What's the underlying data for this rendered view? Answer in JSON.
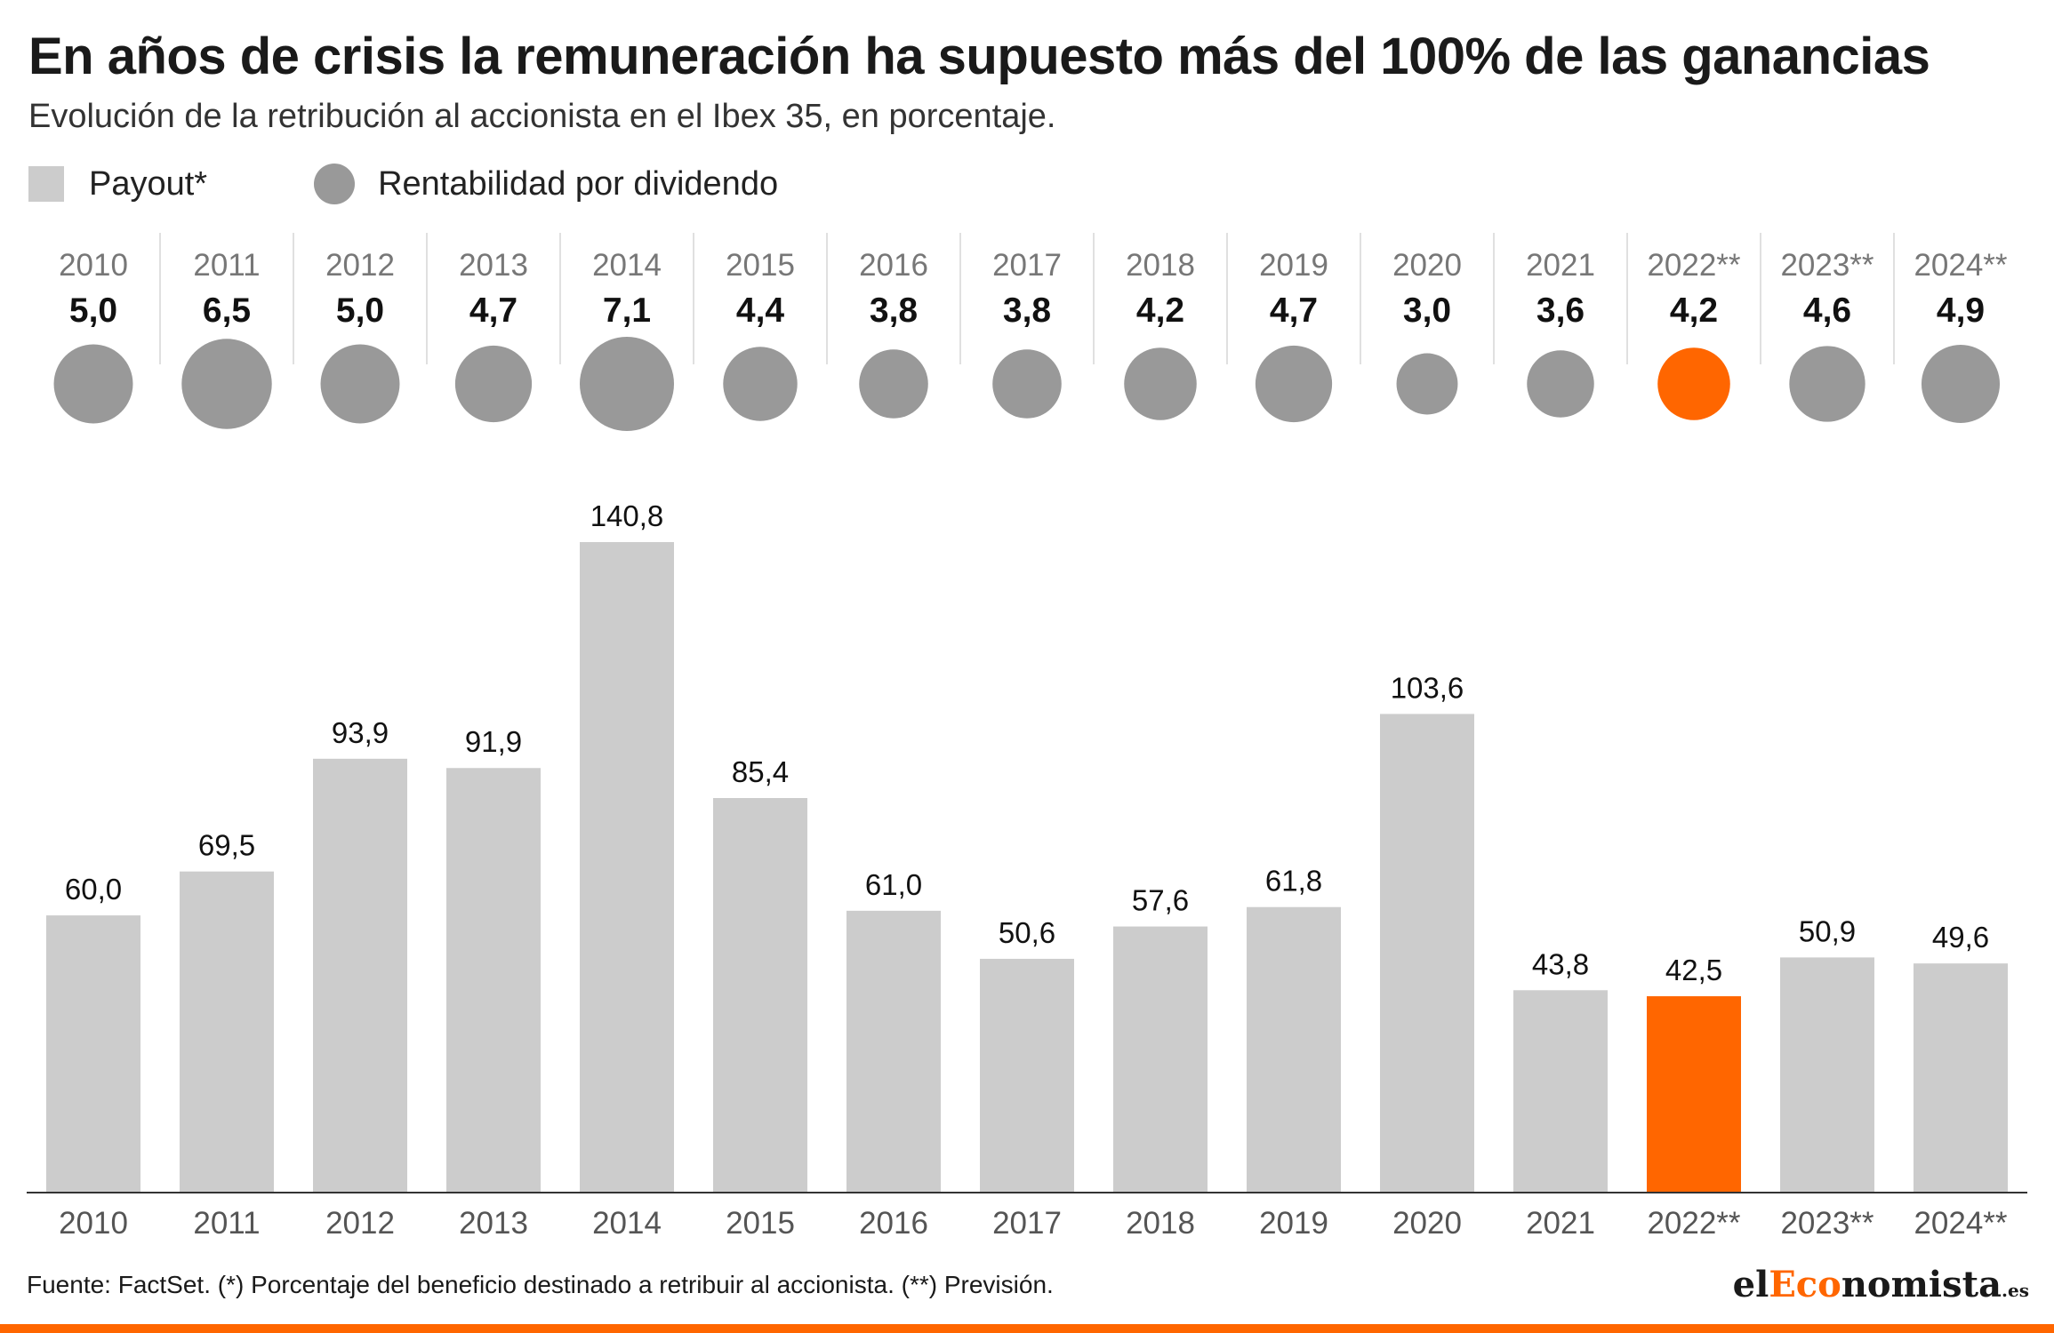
{
  "title": "En años de crisis la remuneración ha supuesto más del 100% de las ganancias",
  "subtitle": "Evolución de la retribución al accionista en el Ibex 35, en porcentaje.",
  "legend": {
    "payout": "Payout*",
    "yield": "Rentabilidad por dividendo"
  },
  "footer": "Fuente: FactSet. (*) Porcentaje del beneficio destinado a retribuir al accionista. (**) Previsión.",
  "logo": {
    "pre": "el",
    "accent": "Eco",
    "post": "nomista",
    "domain": ".es"
  },
  "colors": {
    "bar": "#cccccc",
    "circle": "#999999",
    "highlight": "#ff6600",
    "axis": "#333333"
  },
  "chart_data": [
    {
      "type": "scatter",
      "description_series": "Rentabilidad por dividendo",
      "categories": [
        "2010",
        "2011",
        "2012",
        "2013",
        "2014",
        "2015",
        "2016",
        "2017",
        "2018",
        "2019",
        "2020",
        "2021",
        "2022**",
        "2023**",
        "2024**"
      ],
      "values": [
        5.0,
        6.5,
        5.0,
        4.7,
        7.1,
        4.4,
        3.8,
        3.8,
        4.2,
        4.7,
        3.0,
        3.6,
        4.2,
        4.6,
        4.9
      ],
      "labels": [
        "5,0",
        "6,5",
        "5,0",
        "4,7",
        "7,1",
        "4,4",
        "3,8",
        "3,8",
        "4,2",
        "4,7",
        "3,0",
        "3,6",
        "4,2",
        "4,6",
        "4,9"
      ],
      "highlight_index": 12
    },
    {
      "type": "bar",
      "description_series": "Payout*",
      "categories": [
        "2010",
        "2011",
        "2012",
        "2013",
        "2014",
        "2015",
        "2016",
        "2017",
        "2018",
        "2019",
        "2020",
        "2021",
        "2022**",
        "2023**",
        "2024**"
      ],
      "values": [
        60.0,
        69.5,
        93.9,
        91.9,
        140.8,
        85.4,
        61.0,
        50.6,
        57.6,
        61.8,
        103.6,
        43.8,
        42.5,
        50.9,
        49.6
      ],
      "labels": [
        "60,0",
        "69,5",
        "93,9",
        "91,9",
        "140,8",
        "85,4",
        "61,0",
        "50,6",
        "57,6",
        "61,8",
        "103,6",
        "43,8",
        "42,5",
        "50,9",
        "49,6"
      ],
      "highlight_index": 12,
      "ylim": [
        0,
        140.8
      ]
    }
  ]
}
